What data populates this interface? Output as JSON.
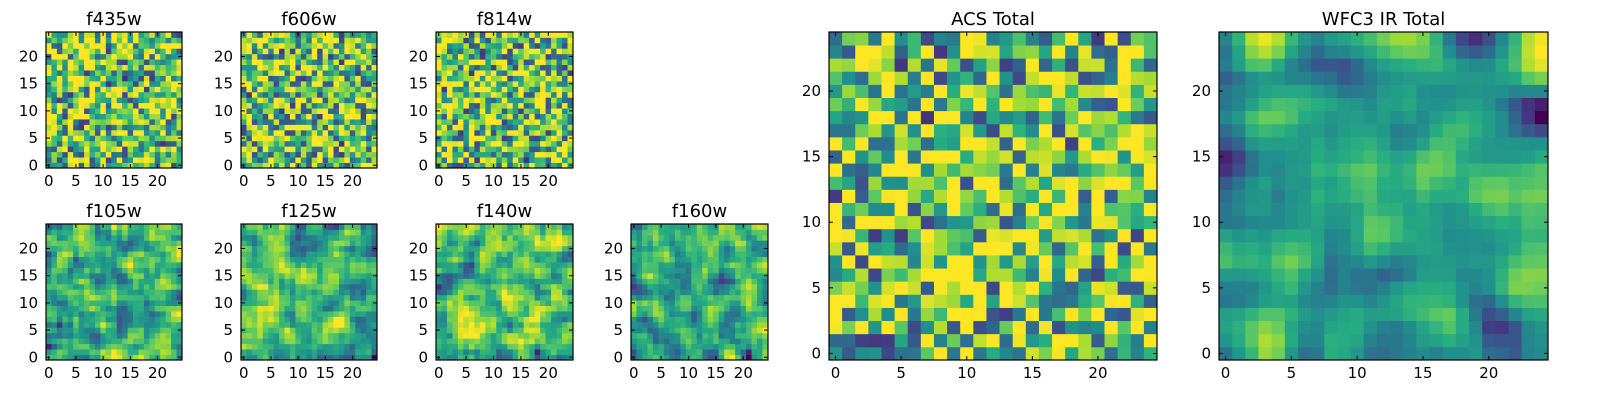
{
  "figure": {
    "description_free": true
  },
  "chart_data": [
    {
      "type": "heatmap",
      "title": "f435w",
      "grid_size": 25,
      "colormap": "viridis",
      "seed": 11,
      "smoothness": 0,
      "bias": 0.15,
      "xticks": [
        "0",
        "5",
        "10",
        "15",
        "20"
      ],
      "yticks": [
        "0",
        "5",
        "10",
        "15",
        "20"
      ],
      "xlim": [
        -0.5,
        24.5
      ],
      "ylim": [
        -0.5,
        24.5
      ]
    },
    {
      "type": "heatmap",
      "title": "f606w",
      "grid_size": 25,
      "colormap": "viridis",
      "seed": 23,
      "smoothness": 0,
      "bias": 0.15,
      "xticks": [
        "0",
        "5",
        "10",
        "15",
        "20"
      ],
      "yticks": [
        "0",
        "5",
        "10",
        "15",
        "20"
      ],
      "xlim": [
        -0.5,
        24.5
      ],
      "ylim": [
        -0.5,
        24.5
      ]
    },
    {
      "type": "heatmap",
      "title": "f814w",
      "grid_size": 25,
      "colormap": "viridis",
      "seed": 37,
      "smoothness": 0,
      "bias": 0.15,
      "xticks": [
        "0",
        "5",
        "10",
        "15",
        "20"
      ],
      "yticks": [
        "0",
        "5",
        "10",
        "15",
        "20"
      ],
      "xlim": [
        -0.5,
        24.5
      ],
      "ylim": [
        -0.5,
        24.5
      ]
    },
    {
      "type": "heatmap",
      "title": "f105w",
      "grid_size": 25,
      "colormap": "viridis",
      "seed": 41,
      "smoothness": 1,
      "bias": 0.1,
      "xticks": [
        "0",
        "5",
        "10",
        "15",
        "20"
      ],
      "yticks": [
        "0",
        "5",
        "10",
        "15",
        "20"
      ],
      "xlim": [
        -0.5,
        24.5
      ],
      "ylim": [
        -0.5,
        24.5
      ]
    },
    {
      "type": "heatmap",
      "title": "f125w",
      "grid_size": 25,
      "colormap": "viridis",
      "seed": 53,
      "smoothness": 1,
      "bias": 0.05,
      "xticks": [
        "0",
        "5",
        "10",
        "15",
        "20"
      ],
      "yticks": [
        "0",
        "5",
        "10",
        "15",
        "20"
      ],
      "xlim": [
        -0.5,
        24.5
      ],
      "ylim": [
        -0.5,
        24.5
      ]
    },
    {
      "type": "heatmap",
      "title": "f140w",
      "grid_size": 25,
      "colormap": "viridis",
      "seed": 67,
      "smoothness": 1,
      "bias": 0.1,
      "xticks": [
        "0",
        "5",
        "10",
        "15",
        "20"
      ],
      "yticks": [
        "0",
        "5",
        "10",
        "15",
        "20"
      ],
      "xlim": [
        -0.5,
        24.5
      ],
      "ylim": [
        -0.5,
        24.5
      ]
    },
    {
      "type": "heatmap",
      "title": "f160w",
      "grid_size": 25,
      "colormap": "viridis",
      "seed": 79,
      "smoothness": 1,
      "bias": 0.0,
      "xticks": [
        "0",
        "5",
        "10",
        "15",
        "20"
      ],
      "yticks": [
        "0",
        "5",
        "10",
        "15",
        "20"
      ],
      "xlim": [
        -0.5,
        24.5
      ],
      "ylim": [
        -0.5,
        24.5
      ]
    },
    {
      "type": "heatmap",
      "title": "ACS Total",
      "grid_size": 25,
      "colormap": "viridis",
      "seed": 97,
      "smoothness": 0,
      "bias": 0.15,
      "xticks": [
        "0",
        "5",
        "10",
        "15",
        "20"
      ],
      "yticks": [
        "0",
        "5",
        "10",
        "15",
        "20"
      ],
      "xlim": [
        -0.5,
        24.5
      ],
      "ylim": [
        -0.5,
        24.5
      ]
    },
    {
      "type": "heatmap",
      "title": "WFC3 IR Total",
      "grid_size": 25,
      "colormap": "viridis",
      "seed": 113,
      "smoothness": 2,
      "bias": 0.0,
      "xticks": [
        "0",
        "5",
        "10",
        "15",
        "20"
      ],
      "yticks": [
        "0",
        "5",
        "10",
        "15",
        "20"
      ],
      "xlim": [
        -0.5,
        24.5
      ],
      "ylim": [
        -0.5,
        24.5
      ]
    }
  ]
}
